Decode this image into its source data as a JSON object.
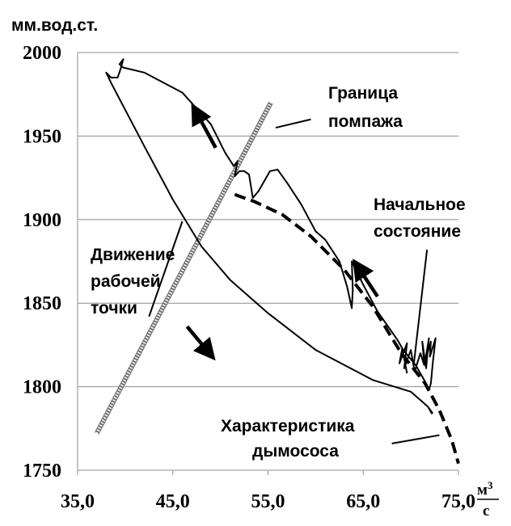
{
  "chart_data": {
    "type": "line",
    "ylabel": "мм.вод.ст.",
    "xunit": {
      "numerator": "м",
      "sup": "3",
      "denominator": "с"
    },
    "xlim": [
      35,
      75
    ],
    "ylim": [
      1750,
      2000
    ],
    "xticks": [
      "35,0",
      "45,0",
      "55,0",
      "65,0",
      "75,0"
    ],
    "yticks": [
      "1750",
      "1800",
      "1850",
      "1900",
      "1950",
      "2000"
    ],
    "grid": "horizontal",
    "annotations": {
      "surge": [
        "Граница",
        "помпажа"
      ],
      "initial": [
        "Начальное",
        "состояние"
      ],
      "movement": [
        "Движение",
        "рабочей",
        "точки"
      ],
      "fan": [
        "Характеристика",
        "дымососа"
      ]
    },
    "series": [
      {
        "style": "hatched",
        "x": [
          37.0,
          55.3
        ],
        "y": [
          1772,
          1970
        ]
      },
      {
        "style": "dashed",
        "x": [
          51.5,
          53.5,
          56.5,
          59.5,
          63.0,
          66.0,
          69.0,
          71.5,
          73.0,
          74.3,
          75.0
        ],
        "y": [
          1915,
          1911,
          1903,
          1890,
          1870,
          1848,
          1820,
          1802,
          1786,
          1768,
          1754
        ]
      },
      {
        "style": "solid",
        "x": [
          69.6,
          69.1,
          68.8,
          69.6,
          69.3,
          70.0,
          70.4,
          71.0,
          71.4,
          71.2,
          71.6,
          71.9,
          71.5,
          72.1,
          72.0,
          72.6,
          72.3,
          72.1,
          71.9,
          71.5,
          70.5,
          69.2,
          68.6,
          66.5,
          65.0,
          63.8,
          63.9,
          63.8,
          63.3,
          62.5,
          61.0,
          60.0,
          58.5,
          57.0,
          56.0,
          55.2,
          54.0,
          53.4,
          53.0,
          52.5,
          52.0,
          51.5,
          51.8,
          51.4,
          50.5,
          49.0,
          46.0,
          42.0,
          39.8,
          39.4,
          39.8,
          39.5,
          39.2,
          38.5,
          38.0,
          38.5,
          42.0,
          45.0,
          48.0,
          51.0,
          55.0,
          60.0,
          66.0,
          70.0,
          71.8,
          72.2,
          71.8,
          72.3
        ],
        "y": [
          1808,
          1823,
          1814,
          1826,
          1811,
          1822,
          1809,
          1820,
          1813,
          1827,
          1811,
          1829,
          1815,
          1827,
          1818,
          1829,
          1814,
          1802,
          1798,
          1803,
          1813,
          1822,
          1828,
          1845,
          1861,
          1875,
          1858,
          1847,
          1860,
          1875,
          1888,
          1893,
          1909,
          1922,
          1930,
          1929,
          1917,
          1913,
          1927,
          1929,
          1929,
          1926,
          1935,
          1932,
          1940,
          1957,
          1976,
          1988,
          1991,
          1993,
          1996,
          1990,
          1985,
          1985,
          1988,
          1982,
          1944,
          1912,
          1884,
          1864,
          1844,
          1822,
          1804,
          1797,
          1788,
          1784,
          1788,
          1784
        ]
      }
    ]
  }
}
